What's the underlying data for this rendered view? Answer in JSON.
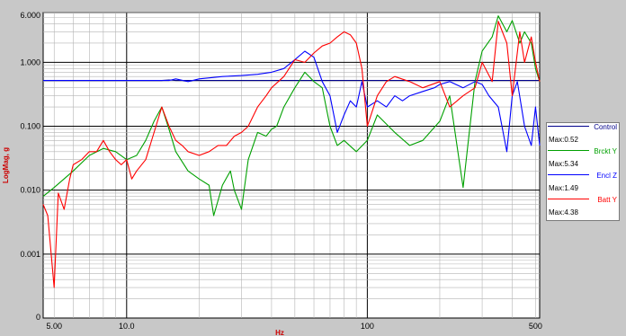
{
  "chart_data": {
    "type": "line",
    "xscale": "log",
    "yscale": "log",
    "xlabel": "Hz",
    "ylabel": "LogMag, g",
    "xlim": [
      4.5,
      520
    ],
    "ylim": [
      0.0001,
      6.0
    ],
    "xticks": [
      {
        "value": 5,
        "label": "5.00"
      },
      {
        "value": 10,
        "label": "10.0"
      },
      {
        "value": 100,
        "label": "100"
      },
      {
        "value": 500,
        "label": "500"
      }
    ],
    "yticks": [
      {
        "value": 6.0,
        "label": "6.000"
      },
      {
        "value": 1.0,
        "label": "1.000"
      },
      {
        "value": 0.1,
        "label": "0.100"
      },
      {
        "value": 0.01,
        "label": "0.010"
      },
      {
        "value": 0.001,
        "label": "0.001"
      },
      {
        "value": 0.0001,
        "label": "0"
      }
    ],
    "grid": true,
    "legend_position": "right",
    "series": [
      {
        "name": "Control",
        "max_label": "Max:0.52",
        "color": "#00008b",
        "x": [
          4.5,
          8,
          12,
          14,
          15,
          16,
          20,
          30,
          40,
          50,
          60,
          70,
          80,
          90,
          100,
          150,
          200,
          250,
          300,
          350,
          400,
          450,
          520
        ],
        "y": [
          0.52,
          0.52,
          0.52,
          0.52,
          0.53,
          0.52,
          0.52,
          0.52,
          0.52,
          0.52,
          0.52,
          0.52,
          0.52,
          0.52,
          0.52,
          0.52,
          0.52,
          0.52,
          0.52,
          0.52,
          0.52,
          0.52,
          0.52
        ]
      },
      {
        "name": "Brckt Y",
        "max_label": "Max:5.34",
        "color": "#00a000",
        "x": [
          4.5,
          5,
          6,
          7,
          8,
          9,
          10,
          11,
          12,
          13,
          14,
          15,
          16,
          18,
          20,
          22,
          23,
          25,
          27,
          28,
          30,
          32,
          35,
          38,
          40,
          42,
          45,
          50,
          55,
          60,
          65,
          70,
          75,
          80,
          90,
          100,
          110,
          130,
          150,
          170,
          200,
          220,
          250,
          280,
          300,
          330,
          350,
          380,
          400,
          430,
          450,
          480,
          500,
          520
        ],
        "y": [
          0.008,
          0.011,
          0.02,
          0.035,
          0.045,
          0.04,
          0.03,
          0.035,
          0.06,
          0.12,
          0.2,
          0.09,
          0.04,
          0.02,
          0.015,
          0.012,
          0.004,
          0.012,
          0.02,
          0.01,
          0.005,
          0.03,
          0.08,
          0.07,
          0.09,
          0.1,
          0.2,
          0.4,
          0.7,
          0.5,
          0.4,
          0.1,
          0.05,
          0.06,
          0.04,
          0.06,
          0.15,
          0.08,
          0.05,
          0.06,
          0.12,
          0.3,
          0.011,
          0.5,
          1.5,
          2.5,
          5.34,
          3.0,
          4.5,
          2.0,
          3.0,
          2.0,
          0.8,
          0.5
        ]
      },
      {
        "name": "Encl Z",
        "max_label": "Max:1.49",
        "color": "#0000ff",
        "x": [
          4.5,
          10,
          15,
          16,
          18,
          20,
          25,
          30,
          35,
          40,
          45,
          50,
          55,
          60,
          65,
          70,
          75,
          80,
          85,
          90,
          95,
          100,
          110,
          120,
          130,
          140,
          150,
          170,
          190,
          200,
          220,
          250,
          280,
          300,
          320,
          350,
          380,
          400,
          420,
          450,
          480,
          500,
          520
        ],
        "y": [
          0.52,
          0.52,
          0.52,
          0.55,
          0.5,
          0.55,
          0.6,
          0.62,
          0.65,
          0.7,
          0.8,
          1.1,
          1.49,
          1.2,
          0.5,
          0.3,
          0.08,
          0.15,
          0.25,
          0.2,
          0.5,
          0.2,
          0.25,
          0.2,
          0.3,
          0.25,
          0.3,
          0.35,
          0.4,
          0.45,
          0.5,
          0.4,
          0.5,
          0.45,
          0.3,
          0.2,
          0.04,
          0.3,
          0.5,
          0.1,
          0.05,
          0.2,
          0.05
        ]
      },
      {
        "name": "Batt Y",
        "max_label": "Max:4.38",
        "color": "#ff0000",
        "x": [
          4.5,
          4.7,
          5.0,
          5.2,
          5.5,
          5.8,
          6,
          6.5,
          7,
          7.5,
          8,
          8.5,
          9,
          9.5,
          10,
          10.5,
          11,
          12,
          13,
          14,
          15,
          16,
          17,
          18,
          20,
          22,
          24,
          26,
          28,
          30,
          32,
          35,
          38,
          40,
          45,
          50,
          55,
          60,
          65,
          70,
          75,
          80,
          85,
          90,
          95,
          100,
          110,
          120,
          130,
          150,
          170,
          200,
          220,
          250,
          280,
          300,
          330,
          350,
          380,
          400,
          430,
          450,
          480,
          500,
          520
        ],
        "y": [
          0.006,
          0.004,
          0.0003,
          0.009,
          0.005,
          0.015,
          0.025,
          0.03,
          0.04,
          0.04,
          0.06,
          0.04,
          0.03,
          0.025,
          0.03,
          0.015,
          0.02,
          0.03,
          0.08,
          0.2,
          0.1,
          0.06,
          0.05,
          0.04,
          0.035,
          0.04,
          0.05,
          0.05,
          0.07,
          0.08,
          0.1,
          0.2,
          0.3,
          0.4,
          0.6,
          1.1,
          1.0,
          1.4,
          1.8,
          2.0,
          2.5,
          3.0,
          2.7,
          2.0,
          0.8,
          0.1,
          0.3,
          0.5,
          0.6,
          0.5,
          0.4,
          0.5,
          0.2,
          0.3,
          0.4,
          1.0,
          0.5,
          4.38,
          2.0,
          0.3,
          3.0,
          1.0,
          2.5,
          1.0,
          0.5
        ]
      }
    ]
  }
}
